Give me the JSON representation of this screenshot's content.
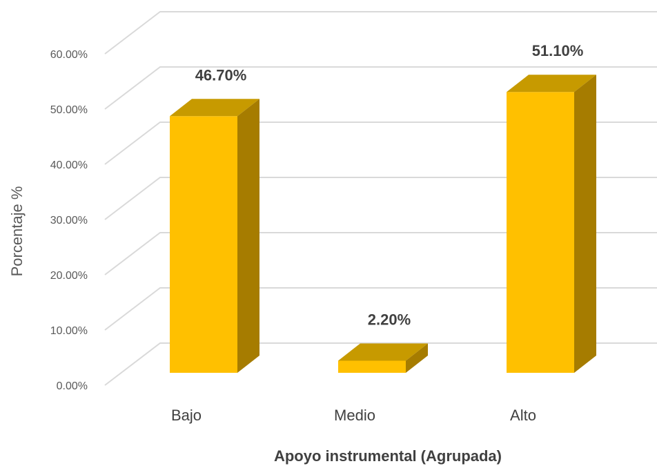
{
  "chart_data": {
    "type": "bar",
    "style": "3d-column",
    "categories": [
      "Bajo",
      "Medio",
      "Alto"
    ],
    "values": [
      46.7,
      2.2,
      51.1
    ],
    "data_labels": [
      "46.70%",
      "2.20%",
      "51.10%"
    ],
    "xlabel": "Apoyo instrumental (Agrupada)",
    "ylabel": "Porcentaje %",
    "ylim": [
      0,
      60
    ],
    "y_ticks": [
      "0.00%",
      "10.00%",
      "20.00%",
      "30.00%",
      "40.00%",
      "50.00%",
      "60.00%"
    ],
    "grid": true,
    "legend": "none",
    "colors": {
      "front": "#FFC000",
      "top": "#C79A00",
      "side": "#A67C00",
      "grid": "#D9D9D9"
    }
  }
}
